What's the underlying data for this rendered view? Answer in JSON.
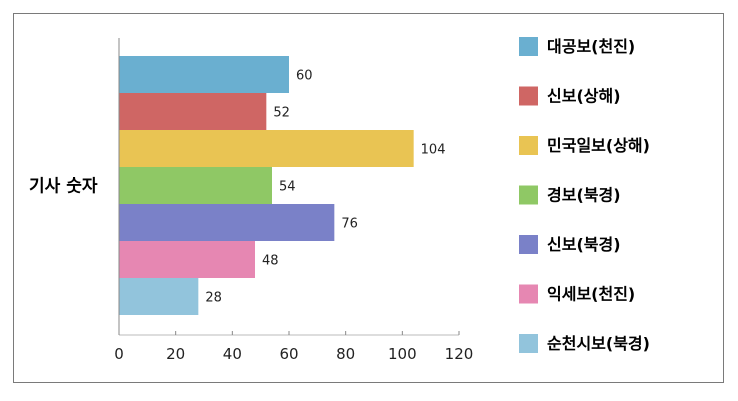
{
  "chart_data": {
    "type": "bar",
    "orientation": "horizontal",
    "categories": [
      "기사 숫자"
    ],
    "series": [
      {
        "name": "대공보(천진)",
        "values": [
          60
        ],
        "color": "#6aafd0"
      },
      {
        "name": "신보(상해)",
        "values": [
          52
        ],
        "color": "#cf6664"
      },
      {
        "name": "민국일보(상해)",
        "values": [
          104
        ],
        "color": "#e9c453"
      },
      {
        "name": "경보(북경)",
        "values": [
          54
        ],
        "color": "#8fc865"
      },
      {
        "name": "신보(북경)",
        "values": [
          76
        ],
        "color": "#7a81c8"
      },
      {
        "name": "익세보(천진)",
        "values": [
          48
        ],
        "color": "#e687b2"
      },
      {
        "name": "순천시보(북경)",
        "values": [
          28
        ],
        "color": "#92c4dc"
      }
    ],
    "xlim": [
      0,
      120
    ],
    "xticks": [
      0,
      20,
      40,
      60,
      80,
      100,
      120
    ],
    "grid": false,
    "legend_position": "right",
    "data_labels": true
  }
}
